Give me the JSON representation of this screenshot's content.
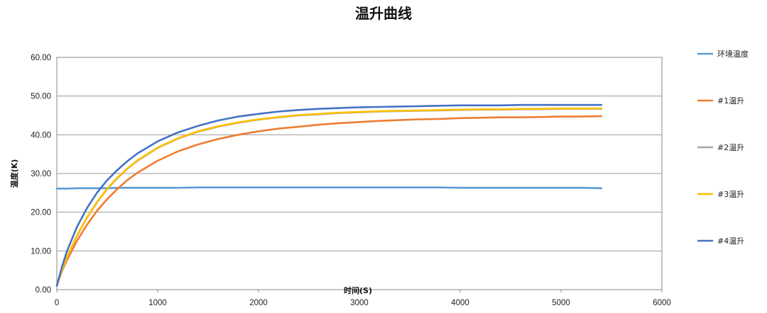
{
  "chart_data": {
    "type": "line",
    "title": "温升曲线",
    "xlabel": "时间(S)",
    "ylabel": "温度(K)",
    "xlim": [
      0,
      6000
    ],
    "ylim": [
      0,
      60
    ],
    "x_ticks": [
      "0",
      "1000",
      "2000",
      "3000",
      "4000",
      "5000",
      "6000"
    ],
    "y_ticks": [
      "0.00",
      "10.00",
      "20.00",
      "30.00",
      "40.00",
      "50.00",
      "60.00"
    ],
    "grid": true,
    "legend_position": "right",
    "x": [
      0,
      50,
      100,
      200,
      300,
      400,
      500,
      600,
      700,
      800,
      1000,
      1200,
      1400,
      1600,
      1800,
      2000,
      2200,
      2400,
      2600,
      2800,
      3000,
      3200,
      3400,
      3600,
      3800,
      4000,
      4200,
      4400,
      4600,
      4800,
      5000,
      5200,
      5400
    ],
    "series": [
      {
        "name": "环境温度",
        "color": "#5b9bd5",
        "values": [
          26.1,
          26.1,
          26.1,
          26.2,
          26.2,
          26.2,
          26.2,
          26.3,
          26.3,
          26.3,
          26.3,
          26.3,
          26.4,
          26.4,
          26.4,
          26.4,
          26.4,
          26.4,
          26.4,
          26.4,
          26.4,
          26.4,
          26.4,
          26.4,
          26.4,
          26.3,
          26.3,
          26.3,
          26.3,
          26.3,
          26.3,
          26.3,
          26.2
        ]
      },
      {
        "name": "#1温升",
        "color": "#ed7d31",
        "values": [
          1.0,
          4.7,
          7.6,
          12.6,
          16.8,
          20.4,
          23.4,
          26.0,
          28.3,
          30.2,
          33.3,
          35.7,
          37.5,
          38.9,
          40.0,
          40.9,
          41.6,
          42.1,
          42.6,
          43.0,
          43.3,
          43.6,
          43.8,
          44.0,
          44.1,
          44.3,
          44.4,
          44.5,
          44.5,
          44.6,
          44.7,
          44.7,
          44.8
        ]
      },
      {
        "name": "#2温升",
        "color": "#a5a5a5",
        "values": [
          1.0,
          5.0,
          8.3,
          13.9,
          18.6,
          22.6,
          26.0,
          28.8,
          31.2,
          33.3,
          36.6,
          39.0,
          40.8,
          42.1,
          43.1,
          43.9,
          44.5,
          45.0,
          45.3,
          45.6,
          45.8,
          46.0,
          46.1,
          46.2,
          46.3,
          46.4,
          46.5,
          46.5,
          46.6,
          46.6,
          46.7,
          46.7,
          46.7
        ]
      },
      {
        "name": "#3温升",
        "color": "#ffc000",
        "values": [
          1.0,
          5.1,
          8.4,
          14.0,
          18.7,
          22.7,
          26.1,
          28.9,
          31.3,
          33.4,
          36.7,
          39.1,
          40.9,
          42.2,
          43.2,
          44.0,
          44.6,
          45.1,
          45.4,
          45.7,
          45.9,
          46.1,
          46.2,
          46.3,
          46.4,
          46.5,
          46.6,
          46.6,
          46.7,
          46.7,
          46.8,
          46.8,
          46.8
        ]
      },
      {
        "name": "#4温升",
        "color": "#4472c4",
        "values": [
          1.0,
          5.8,
          9.9,
          16.2,
          21.1,
          25.1,
          28.3,
          30.9,
          33.2,
          35.2,
          38.3,
          40.6,
          42.3,
          43.7,
          44.7,
          45.4,
          46.0,
          46.4,
          46.7,
          46.9,
          47.1,
          47.2,
          47.3,
          47.4,
          47.5,
          47.6,
          47.6,
          47.6,
          47.7,
          47.7,
          47.7,
          47.7,
          47.7
        ]
      }
    ]
  }
}
